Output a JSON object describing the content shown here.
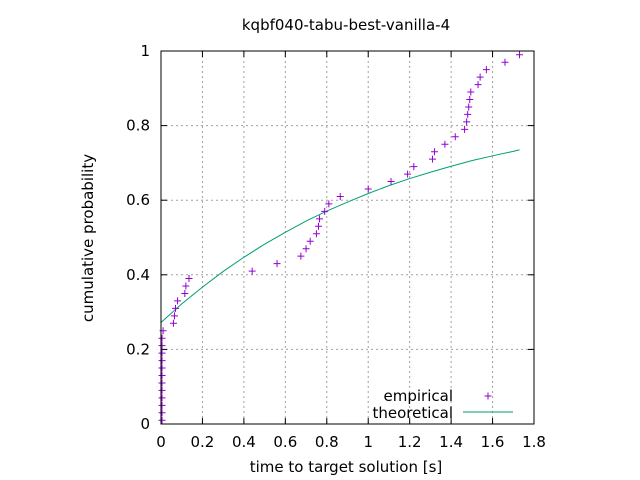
{
  "chart_data": {
    "type": "scatter",
    "title": "kqbf040-tabu-best-vanilla-4",
    "xlabel": "time to target solution [s]",
    "ylabel": "cumulative probability",
    "xlim": [
      0,
      1.8
    ],
    "ylim": [
      0,
      1
    ],
    "x_ticks": [
      0,
      0.2,
      0.4,
      0.6,
      0.8,
      1,
      1.2,
      1.4,
      1.6,
      1.8
    ],
    "x_tick_labels": [
      "0",
      "0.2",
      "0.4",
      "0.6",
      "0.8",
      "1",
      "1.2",
      "1.4",
      "1.6",
      "1.8"
    ],
    "y_ticks": [
      0,
      0.2,
      0.4,
      0.6,
      0.8,
      1
    ],
    "y_tick_labels": [
      "0",
      "0.2",
      "0.4",
      "0.6",
      "0.8",
      "1"
    ],
    "grid": true,
    "legend_position": "bottom-right",
    "series": [
      {
        "name": "empirical",
        "style": "points",
        "marker": "plus",
        "color": "#9400d3",
        "points": [
          [
            0.005,
            0.01
          ],
          [
            0.005,
            0.03
          ],
          [
            0.005,
            0.05
          ],
          [
            0.005,
            0.07
          ],
          [
            0.005,
            0.09
          ],
          [
            0.005,
            0.11
          ],
          [
            0.005,
            0.13
          ],
          [
            0.005,
            0.15
          ],
          [
            0.005,
            0.17
          ],
          [
            0.005,
            0.19
          ],
          [
            0.005,
            0.21
          ],
          [
            0.005,
            0.23
          ],
          [
            0.01,
            0.25
          ],
          [
            0.06,
            0.27
          ],
          [
            0.065,
            0.29
          ],
          [
            0.07,
            0.31
          ],
          [
            0.08,
            0.33
          ],
          [
            0.115,
            0.35
          ],
          [
            0.12,
            0.37
          ],
          [
            0.135,
            0.39
          ],
          [
            0.44,
            0.41
          ],
          [
            0.56,
            0.43
          ],
          [
            0.675,
            0.45
          ],
          [
            0.7,
            0.47
          ],
          [
            0.72,
            0.49
          ],
          [
            0.75,
            0.51
          ],
          [
            0.76,
            0.53
          ],
          [
            0.765,
            0.55
          ],
          [
            0.79,
            0.57
          ],
          [
            0.81,
            0.59
          ],
          [
            0.865,
            0.61
          ],
          [
            1.0,
            0.63
          ],
          [
            1.11,
            0.65
          ],
          [
            1.19,
            0.67
          ],
          [
            1.22,
            0.69
          ],
          [
            1.31,
            0.71
          ],
          [
            1.32,
            0.73
          ],
          [
            1.37,
            0.75
          ],
          [
            1.42,
            0.77
          ],
          [
            1.465,
            0.79
          ],
          [
            1.475,
            0.81
          ],
          [
            1.48,
            0.83
          ],
          [
            1.485,
            0.85
          ],
          [
            1.49,
            0.87
          ],
          [
            1.495,
            0.89
          ],
          [
            1.53,
            0.91
          ],
          [
            1.54,
            0.93
          ],
          [
            1.57,
            0.95
          ],
          [
            1.66,
            0.97
          ],
          [
            1.73,
            0.99
          ]
        ]
      },
      {
        "name": "theoretical",
        "style": "line",
        "color": "#009e73",
        "points": [
          [
            0,
            0.272
          ],
          [
            0.1,
            0.322
          ],
          [
            0.2,
            0.367
          ],
          [
            0.3,
            0.409
          ],
          [
            0.4,
            0.447
          ],
          [
            0.5,
            0.482
          ],
          [
            0.6,
            0.514
          ],
          [
            0.7,
            0.544
          ],
          [
            0.8,
            0.571
          ],
          [
            0.9,
            0.595
          ],
          [
            1.0,
            0.618
          ],
          [
            1.1,
            0.639
          ],
          [
            1.2,
            0.658
          ],
          [
            1.3,
            0.675
          ],
          [
            1.4,
            0.691
          ],
          [
            1.5,
            0.706
          ],
          [
            1.6,
            0.719
          ],
          [
            1.7,
            0.731
          ],
          [
            1.73,
            0.735
          ]
        ]
      }
    ]
  }
}
